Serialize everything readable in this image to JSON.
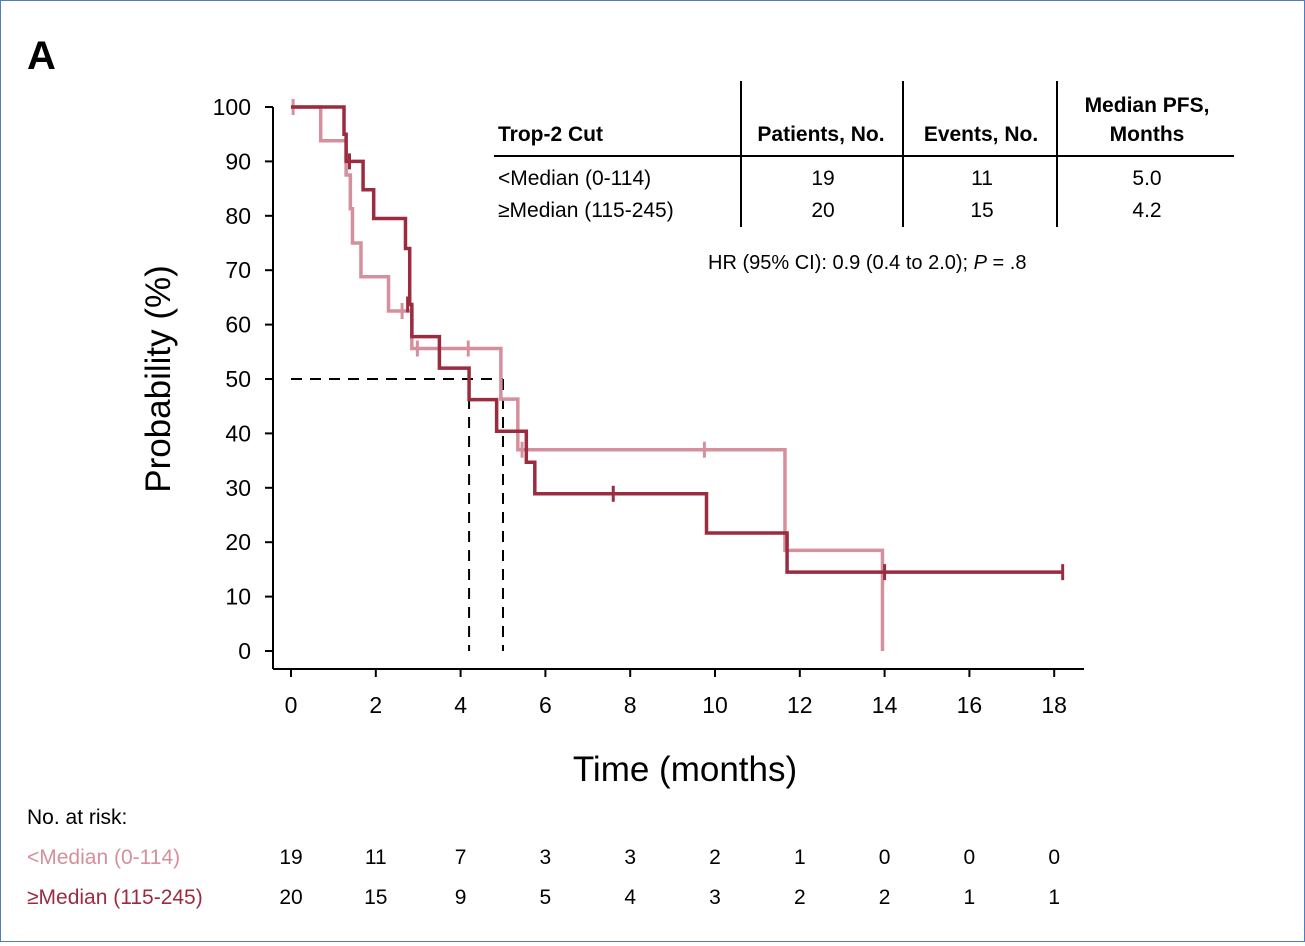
{
  "panel_label": "A",
  "chart_data": {
    "type": "line",
    "subtype": "kaplan-meier",
    "title": "",
    "xlabel": "Time (months)",
    "ylabel": "Probability (%)",
    "xlim": [
      0,
      19
    ],
    "ylim": [
      0,
      100
    ],
    "xticks": [
      0,
      2,
      4,
      6,
      8,
      10,
      12,
      14,
      16,
      18
    ],
    "yticks": [
      0,
      10,
      20,
      30,
      40,
      50,
      60,
      70,
      80,
      90,
      100
    ],
    "grid": false,
    "series": [
      {
        "key": "low",
        "color": "#d4909c",
        "steps": [
          [
            0,
            100
          ],
          [
            0.7,
            93.8
          ],
          [
            1.3,
            87.5
          ],
          [
            1.4,
            81.3
          ],
          [
            1.45,
            75
          ],
          [
            1.65,
            68.8
          ],
          [
            2.3,
            62.5
          ],
          [
            2.85,
            55.6
          ],
          [
            4.95,
            46.3
          ],
          [
            5.35,
            37
          ],
          [
            11.65,
            18.5
          ],
          [
            13.95,
            0
          ]
        ],
        "end": 13.95,
        "censored": [
          [
            0.05,
            100
          ],
          [
            2.62,
            62.5
          ],
          [
            2.98,
            55.6
          ],
          [
            4.18,
            55.6
          ],
          [
            5.45,
            37
          ],
          [
            9.75,
            37
          ]
        ]
      },
      {
        "key": "high",
        "color": "#9b2c40",
        "steps": [
          [
            0,
            100
          ],
          [
            1.25,
            95
          ],
          [
            1.3,
            90
          ],
          [
            1.7,
            84.8
          ],
          [
            1.95,
            79.5
          ],
          [
            2.7,
            74
          ],
          [
            2.8,
            63.7
          ],
          [
            2.85,
            57.8
          ],
          [
            3.5,
            52
          ],
          [
            4.2,
            46.2
          ],
          [
            4.85,
            40.4
          ],
          [
            5.55,
            34.7
          ],
          [
            5.75,
            28.9
          ],
          [
            9.8,
            21.7
          ],
          [
            11.7,
            14.5
          ]
        ],
        "end": 18.2,
        "censored": [
          [
            1.38,
            90
          ],
          [
            2.75,
            63.7
          ],
          [
            7.6,
            28.9
          ],
          [
            14.0,
            14.5
          ],
          [
            18.2,
            14.5
          ]
        ]
      }
    ],
    "median_lines": {
      "y": 50,
      "x": [
        4.2,
        5.0
      ]
    }
  },
  "summary_table": {
    "headers": [
      "Trop-2 Cut",
      "Patients, No.",
      "Events, No.",
      "Median PFS,",
      "Months"
    ],
    "rows": [
      [
        "<Median (0-114)",
        "19",
        "11",
        "5.0"
      ],
      [
        "≥Median (115-245)",
        "20",
        "15",
        "4.2"
      ]
    ]
  },
  "hr_text": {
    "before": "HR (95% CI): 0.9 (0.4 to 2.0); ",
    "p_label": "P",
    "after": " = .8"
  },
  "risk_table": {
    "title": "No. at risk:",
    "rows": [
      {
        "label": "<Median (0-114)",
        "color": "#d4909c",
        "values": [
          "19",
          "11",
          "7",
          "3",
          "3",
          "2",
          "1",
          "0",
          "0",
          "0"
        ]
      },
      {
        "label": "≥Median (115-245)",
        "color": "#9b2c40",
        "values": [
          "20",
          "15",
          "9",
          "5",
          "4",
          "3",
          "2",
          "2",
          "1",
          "1"
        ]
      }
    ]
  }
}
